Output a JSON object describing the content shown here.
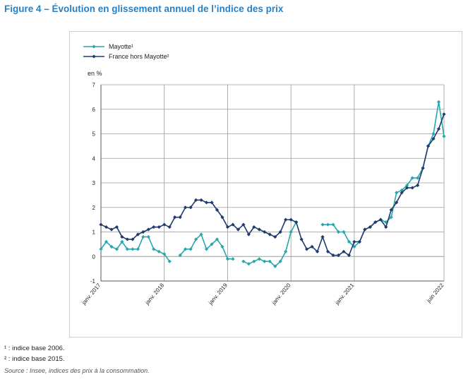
{
  "figure_title": "Figure 4 – Évolution en glissement annuel de l’indice des prix",
  "notes": [
    "¹ : indice base 2006.",
    "² : indice base 2015."
  ],
  "source": "Source : Insee, indices des prix à la consommation.",
  "colors": {
    "title": "#2a7fc0",
    "mayotte": "#27a7ad",
    "france": "#1f3b6e",
    "grid": "#9a9a9a"
  },
  "chart_data": {
    "type": "line",
    "ylabel": "en %",
    "ylim": [
      -1,
      7
    ],
    "yticks": [
      -1,
      0,
      1,
      2,
      3,
      4,
      5,
      6,
      7
    ],
    "xticks": [
      "janv. 2017",
      "janv. 2018",
      "janv. 2019",
      "janv. 2020",
      "janv. 2021",
      "juin 2022"
    ],
    "xtick_month_index": [
      0,
      12,
      24,
      36,
      48,
      65
    ],
    "x_start": "janv. 2017",
    "legend_position": "top-left",
    "series": [
      {
        "name": "Mayotte¹",
        "color": "#27a7ad",
        "values": [
          0.3,
          0.6,
          0.4,
          0.3,
          0.6,
          0.3,
          0.3,
          0.3,
          0.8,
          0.8,
          0.3,
          0.2,
          0.1,
          -0.2,
          null,
          0.05,
          0.3,
          0.3,
          0.7,
          0.9,
          0.3,
          0.5,
          0.7,
          0.4,
          -0.1,
          -0.1,
          null,
          -0.2,
          -0.3,
          -0.2,
          -0.1,
          -0.2,
          -0.2,
          -0.4,
          -0.2,
          0.2,
          1.0,
          1.4,
          null,
          null,
          null,
          null,
          1.3,
          1.3,
          1.3,
          1.0,
          1.0,
          0.6,
          0.4,
          0.6,
          1.1,
          1.2,
          1.4,
          1.5,
          1.4,
          1.6,
          2.6,
          2.7,
          2.9,
          3.2,
          3.2,
          3.6,
          4.5,
          5.0,
          6.3,
          4.9
        ]
      },
      {
        "name": "France hors Mayotte²",
        "color": "#1f3b6e",
        "values": [
          1.3,
          1.2,
          1.1,
          1.2,
          0.8,
          0.7,
          0.7,
          0.9,
          1.0,
          1.1,
          1.2,
          1.2,
          1.3,
          1.2,
          1.6,
          1.6,
          2.0,
          2.0,
          2.3,
          2.3,
          2.2,
          2.2,
          1.9,
          1.6,
          1.2,
          1.3,
          1.1,
          1.3,
          0.9,
          1.2,
          1.1,
          1.0,
          0.9,
          0.8,
          1.0,
          1.5,
          1.5,
          1.4,
          0.7,
          0.3,
          0.4,
          0.2,
          0.8,
          0.2,
          0.05,
          0.05,
          0.2,
          0.05,
          0.6,
          0.6,
          1.1,
          1.2,
          1.4,
          1.5,
          1.2,
          1.9,
          2.2,
          2.6,
          2.8,
          2.8,
          2.9,
          3.6,
          4.5,
          4.8,
          5.2,
          5.8
        ]
      }
    ]
  }
}
